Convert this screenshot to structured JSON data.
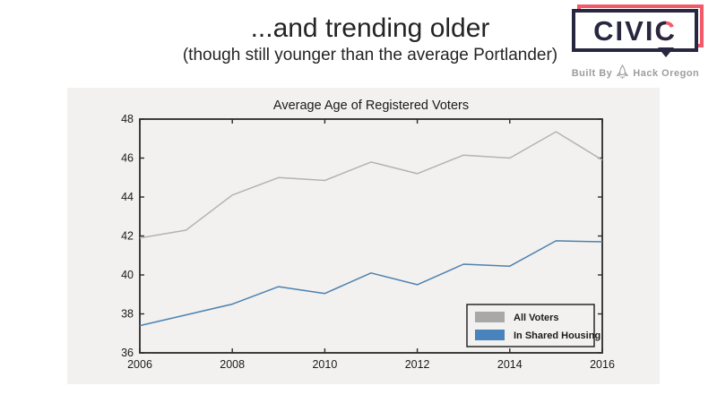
{
  "slide": {
    "title": "...and trending older",
    "subtitle": "(though still younger than the average Portlander)"
  },
  "logo": {
    "text_main": "CIVI",
    "text_accent": "C",
    "tagline_left": "Built By",
    "tagline_right": "Hack Oregon",
    "navy": "#27273f",
    "pink": "#f25a6b",
    "gray": "#9d9d9d"
  },
  "chart_data": {
    "type": "line",
    "title": "Average Age of Registered Voters",
    "x": [
      2006,
      2007,
      2008,
      2009,
      2010,
      2011,
      2012,
      2013,
      2014,
      2015,
      2016
    ],
    "series": [
      {
        "name": "All Voters",
        "color": "#b3b3b3",
        "legend_color": "#a8a8a8",
        "values": [
          41.9,
          42.3,
          44.1,
          45.0,
          44.85,
          45.8,
          45.2,
          46.15,
          46.0,
          47.35,
          45.9
        ]
      },
      {
        "name": "In Shared Housing",
        "color": "#4e81ae",
        "legend_color": "#4883bb",
        "values": [
          37.4,
          37.95,
          38.5,
          39.4,
          39.05,
          40.1,
          39.5,
          40.55,
          40.45,
          41.75,
          41.7
        ]
      }
    ],
    "xlim": [
      2006,
      2016
    ],
    "ylim": [
      36,
      48
    ],
    "xticks": [
      2006,
      2008,
      2010,
      2012,
      2014,
      2016
    ],
    "yticks": [
      36,
      38,
      40,
      42,
      44,
      46,
      48
    ],
    "grid": false,
    "legend_position": "lower right",
    "figure_bg": "#f2f1ef",
    "axis_color": "#2a2a2a"
  }
}
